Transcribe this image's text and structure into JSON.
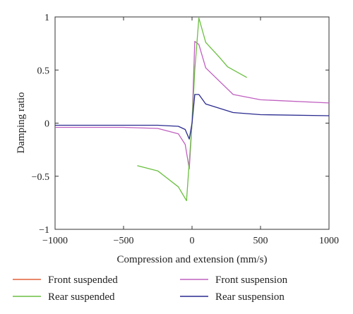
{
  "chart_data": {
    "type": "line",
    "title": "",
    "xlabel": "Compression and extension (mm/s)",
    "ylabel": "Damping ratio",
    "xlim": [
      -1000,
      1000
    ],
    "ylim": [
      -1,
      1
    ],
    "xticks": [
      -1000,
      -500,
      0,
      500,
      1000
    ],
    "xtick_labels": [
      "−1000",
      "−500",
      "0",
      "500",
      "1000"
    ],
    "yticks": [
      1,
      0.5,
      0,
      -0.5,
      -1
    ],
    "ytick_labels": [
      "1",
      "0.5",
      "0",
      "−0.5",
      "−1"
    ],
    "grid": false,
    "legend_position": "bottom",
    "series": [
      {
        "name": "Front suspended",
        "color": "#e2603a",
        "x": [],
        "y": []
      },
      {
        "name": "Front suspension",
        "color": "#c060c0",
        "x": [
          -1000,
          -500,
          -250,
          -100,
          -50,
          -20,
          0,
          20,
          50,
          100,
          300,
          500,
          1000
        ],
        "y": [
          -0.04,
          -0.04,
          -0.05,
          -0.1,
          -0.2,
          -0.43,
          0,
          0.77,
          0.74,
          0.52,
          0.27,
          0.22,
          0.19
        ]
      },
      {
        "name": "Rear suspended",
        "color": "#6abf40",
        "x": [
          -400,
          -250,
          -100,
          -40,
          0,
          20,
          50,
          100,
          200,
          260,
          400
        ],
        "y": [
          -0.4,
          -0.45,
          -0.6,
          -0.73,
          0,
          0.5,
          0.99,
          0.76,
          0.62,
          0.53,
          0.43
        ]
      },
      {
        "name": "Rear suspension",
        "color": "#2a2a90",
        "x": [
          -1000,
          -500,
          -250,
          -100,
          -50,
          -20,
          0,
          20,
          50,
          100,
          300,
          500,
          1000
        ],
        "y": [
          -0.02,
          -0.02,
          -0.02,
          -0.03,
          -0.06,
          -0.15,
          0,
          0.27,
          0.27,
          0.18,
          0.1,
          0.08,
          0.07
        ]
      }
    ]
  }
}
